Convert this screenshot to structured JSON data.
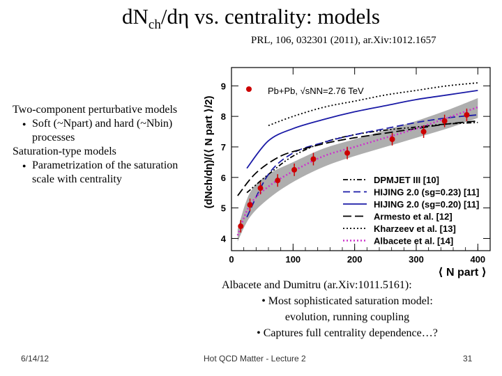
{
  "slide": {
    "title_main": "dN",
    "title_sub": "ch",
    "title_rest": "/dη vs. centrality: models",
    "reference": "PRL, 106, 032301 (2011), ar.Xiv:1012.1657",
    "bullets": {
      "b1": "Two-component perturbative models",
      "b1a": "Soft (~Npart) and hard (~Nbin) processes",
      "b2": "Saturation-type models",
      "b2a": "Parametrization of the saturation scale with centrality"
    },
    "note": {
      "line1": "Albacete and Dumitru (ar.Xiv:1011.5161):",
      "line2": "• Most sophisticated saturation model:",
      "line3": "evolution, running coupling",
      "line4": "• Captures full centrality dependence…?"
    },
    "footer": {
      "date": "6/14/12",
      "center": "Hot QCD Matter - Lecture 2",
      "page": "31"
    }
  },
  "chart_data": {
    "type": "line",
    "xlabel": "⟨ N part ⟩",
    "ylabel": "(dNch/dη)/(⟨ N part ⟩/2)",
    "xlim": [
      0,
      420
    ],
    "ylim": [
      3.6,
      9.6
    ],
    "xticks": [
      0,
      100,
      200,
      300,
      400
    ],
    "yticks": [
      4,
      5,
      6,
      7,
      8,
      9
    ],
    "legend_position": "lower-right",
    "annotation": "Pb+Pb, √sNN=2.76 TeV",
    "data_series": {
      "name": "Pb+Pb, √sNN=2.76 TeV",
      "color": "#cc0000",
      "x": [
        15,
        30,
        47,
        75,
        102,
        133,
        188,
        261,
        312,
        346,
        382
      ],
      "y": [
        4.4,
        5.1,
        5.65,
        5.9,
        6.25,
        6.6,
        6.8,
        7.25,
        7.5,
        7.85,
        8.05
      ]
    },
    "series": [
      {
        "name": "DPMJET III [10]",
        "style": "dashdotdot",
        "color": "#000000",
        "x": [
          25,
          60,
          100,
          150,
          200,
          250,
          300,
          350,
          400
        ],
        "y": [
          5.5,
          6.1,
          6.7,
          7.15,
          7.4,
          7.55,
          7.65,
          7.75,
          7.8
        ]
      },
      {
        "name": "HIJING 2.0 (sg=0.23) [11]",
        "style": "dashed",
        "color": "#1a1aa6",
        "x": [
          25,
          60,
          100,
          150,
          200,
          250,
          300,
          350,
          400
        ],
        "y": [
          4.7,
          6.1,
          6.8,
          7.15,
          7.4,
          7.6,
          7.8,
          7.95,
          8.05
        ]
      },
      {
        "name": "HIJING 2.0 (sg=0.20) [11]",
        "style": "solid",
        "color": "#1a1aa6",
        "x": [
          25,
          60,
          100,
          150,
          200,
          250,
          300,
          350,
          400
        ],
        "y": [
          6.3,
          7.2,
          7.6,
          7.9,
          8.15,
          8.35,
          8.55,
          8.7,
          8.85
        ]
      },
      {
        "name": "Armesto et al. [12]",
        "style": "longdash",
        "color": "#000000",
        "x": [
          10,
          40,
          80,
          120,
          160,
          200,
          250,
          300,
          350,
          400
        ],
        "y": [
          5.4,
          6.15,
          6.7,
          6.95,
          7.15,
          7.3,
          7.45,
          7.6,
          7.75,
          7.85
        ]
      },
      {
        "name": "Kharzeev et al. [13]",
        "style": "dotted",
        "color": "#000000",
        "x": [
          60,
          100,
          150,
          200,
          250,
          300,
          350,
          400
        ],
        "y": [
          7.7,
          8.0,
          8.3,
          8.5,
          8.7,
          8.85,
          9.0,
          9.1
        ]
      },
      {
        "name": "Albacete et al. [14]",
        "style": "dotted",
        "color": "#cc33cc",
        "x": [
          10,
          30,
          60,
          100,
          150,
          200,
          250,
          300,
          350,
          400
        ],
        "y": [
          4.1,
          5.1,
          5.7,
          6.2,
          6.7,
          7.0,
          7.3,
          7.6,
          7.95,
          8.3
        ]
      }
    ],
    "band": {
      "name": "Albacete et al. [14]",
      "color": "#a0a0a0",
      "x": [
        10,
        30,
        60,
        100,
        150,
        200,
        250,
        300,
        350,
        400
      ],
      "lower": [
        3.9,
        4.7,
        5.3,
        5.85,
        6.35,
        6.7,
        7.0,
        7.3,
        7.6,
        7.95
      ],
      "upper": [
        4.3,
        5.5,
        6.1,
        6.5,
        6.95,
        7.25,
        7.55,
        7.85,
        8.2,
        8.6
      ]
    }
  }
}
